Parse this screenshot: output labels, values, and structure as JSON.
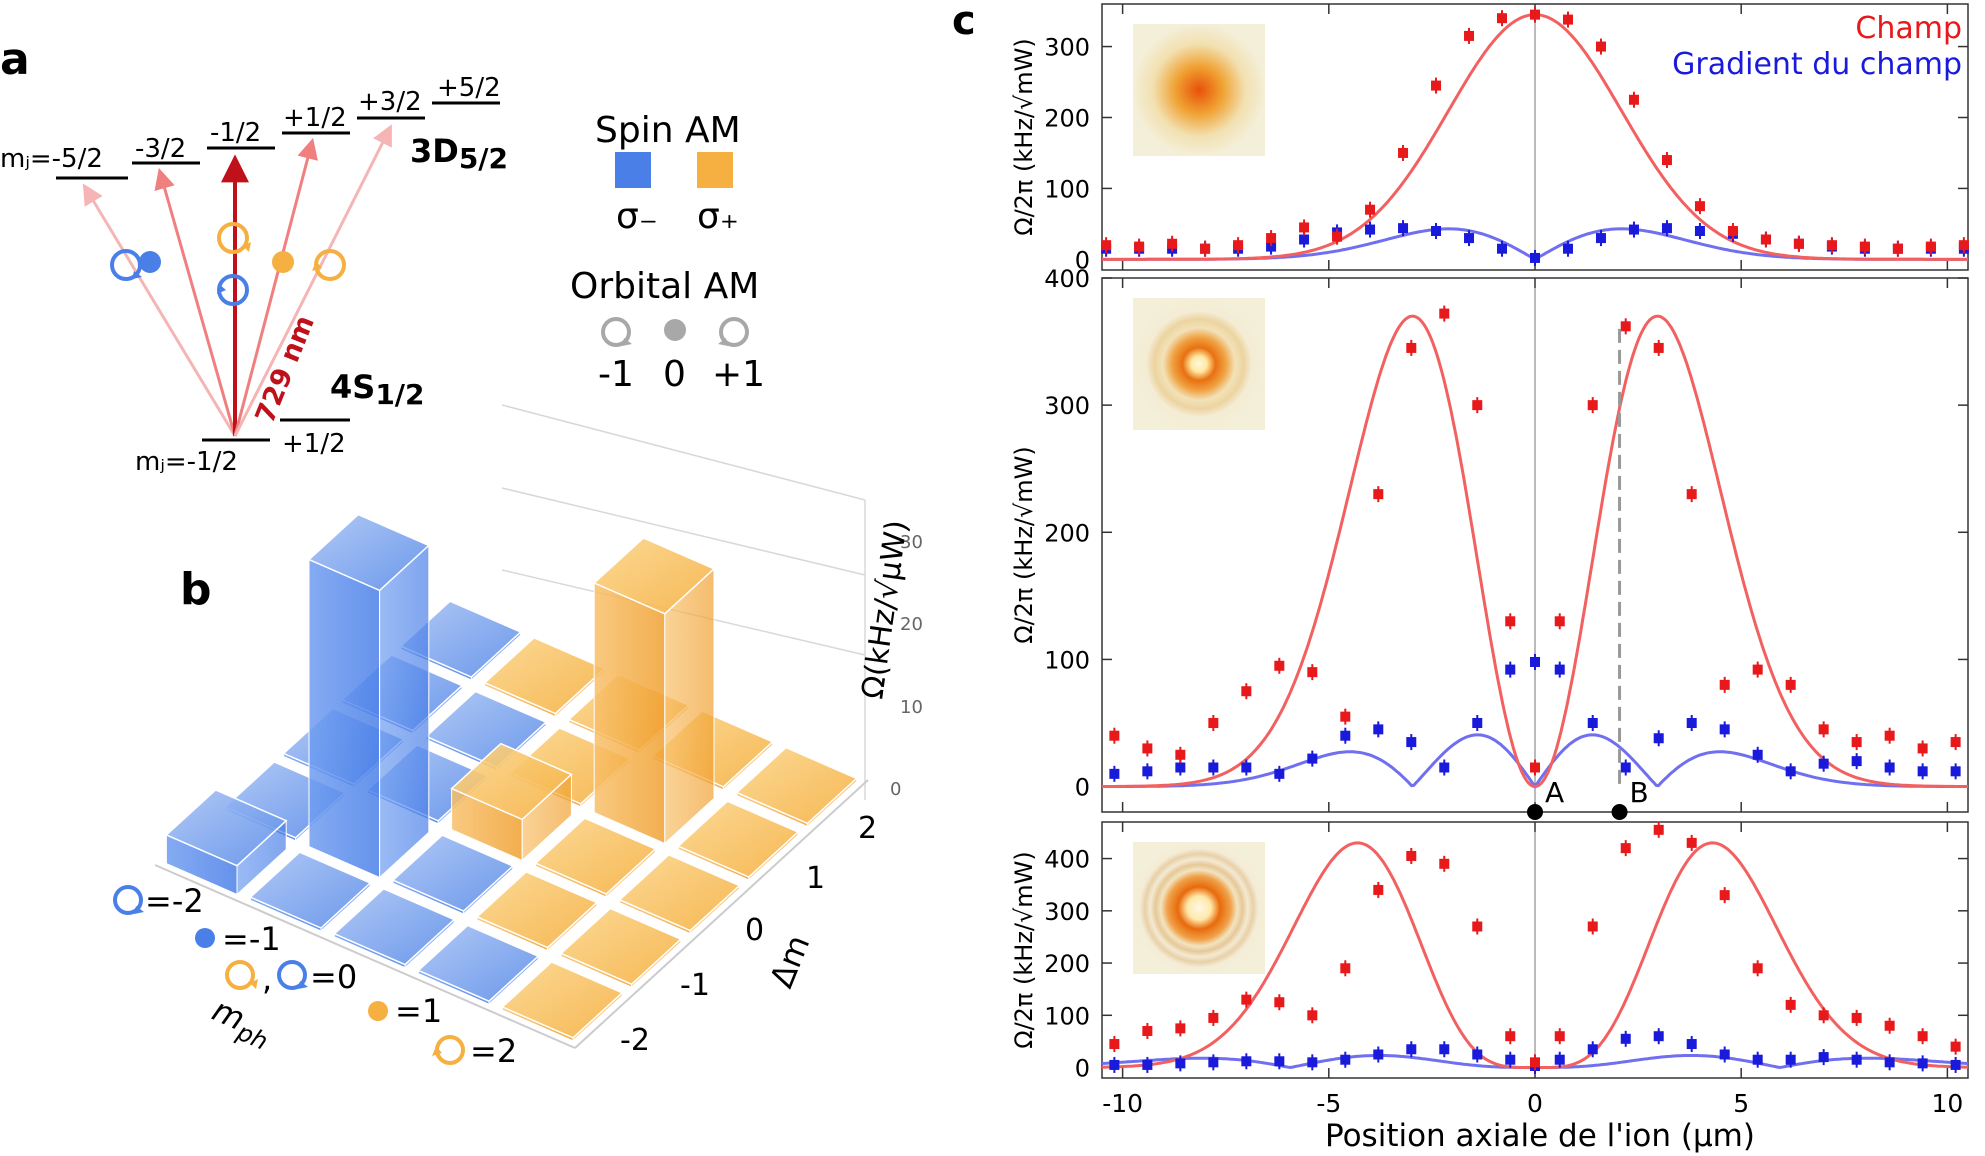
{
  "panel_labels": {
    "a": "a",
    "b": "b",
    "c": "c"
  },
  "colors": {
    "sigma_minus": "#4a7fe8",
    "sigma_plus": "#f5b041",
    "field_red": "#e8191a",
    "fit_red": "#f26060",
    "gradient_blue": "#1a1adb",
    "fit_blue": "#6f6ff0",
    "laser_dark": "#c0101a",
    "grey_icon": "#a8a8a8"
  },
  "panel_a": {
    "d_levels": [
      "mⱼ=-5/2",
      "-3/2",
      "-1/2",
      "+1/2",
      "+3/2",
      "+5/2"
    ],
    "d_state": "3D",
    "d_subscript": "5/2",
    "s_state": "4S",
    "s_subscript": "1/2",
    "s_levels": [
      "mⱼ=-1/2",
      "+1/2"
    ],
    "wavelength": "729 nm"
  },
  "legend_a": {
    "spin_title": "Spin AM",
    "sigma_minus": "σ₋",
    "sigma_plus": "σ₊",
    "orbital_title": "Orbital AM",
    "orbital_values": [
      "-1",
      "0",
      "+1"
    ]
  },
  "chart_data": [
    {
      "type": "bar3d",
      "axis_z_label": "Ω(kHz/√μW)",
      "z_ticks": [
        "0",
        "10",
        "20",
        "30"
      ],
      "axis_dm_label": "Δm",
      "dm_ticks": [
        "2",
        "1",
        "0",
        "-1",
        "-2"
      ],
      "axis_mph_label": "m",
      "axis_mph_subscript": "ph",
      "mph_ticks": [
        "=-2",
        "=-1",
        ",",
        "=0",
        "=1",
        "=2"
      ],
      "bars": [
        {
          "m_ph": -2,
          "dm": -2,
          "value": 3.5,
          "pol": "sigma-"
        },
        {
          "m_ph": -1,
          "dm": -1,
          "value": 35,
          "pol": "sigma-"
        },
        {
          "m_ph": 0,
          "dm": 0,
          "value": 5,
          "pol": "sigma+"
        },
        {
          "m_ph": 1,
          "dm": 1,
          "value": 28,
          "pol": "sigma+"
        }
      ]
    },
    {
      "type": "scatter",
      "xlabel": "Position axiale de l'ion (μm)",
      "xlim": [
        -10.5,
        10.5
      ],
      "x_ticks": [
        -10,
        -5,
        0,
        5,
        10
      ],
      "legend": {
        "field": "Champ",
        "gradient": "Gradient du champ"
      },
      "subplots": [
        {
          "ylabel": "Ω/2π (kHz/√mW)",
          "ylim": [
            -15,
            360
          ],
          "y_ticks": [
            0,
            100,
            200,
            300
          ],
          "field_fit": {
            "shape": "gauss",
            "amp": 345,
            "center": 0,
            "sigma": 2.1
          },
          "gradient_fit": {
            "shape": "gauss_deriv",
            "amp": 43,
            "center": 0,
            "sigma": 2.1
          },
          "field_points": {
            "x": [
              -10.4,
              -9.6,
              -8.8,
              -8.0,
              -7.2,
              -6.4,
              -5.6,
              -4.8,
              -4.0,
              -3.2,
              -2.4,
              -1.6,
              -0.8,
              0,
              0.8,
              1.6,
              2.4,
              3.2,
              4.0,
              4.8,
              5.6,
              6.4,
              7.2,
              8.0,
              8.8,
              9.6,
              10.4
            ],
            "y": [
              20,
              18,
              22,
              15,
              20,
              30,
              45,
              32,
              70,
              150,
              245,
              315,
              340,
              345,
              338,
              300,
              225,
              140,
              75,
              40,
              28,
              22,
              20,
              18,
              15,
              18,
              20
            ]
          },
          "gradient_points": {
            "x": [
              -10.4,
              -9.6,
              -8.8,
              -8.0,
              -7.2,
              -6.4,
              -5.6,
              -4.8,
              -4.0,
              -3.2,
              -2.4,
              -1.6,
              -0.8,
              0,
              0.8,
              1.6,
              2.4,
              3.2,
              4.0,
              4.8,
              5.6,
              6.4,
              7.2,
              8.0,
              8.8,
              9.6,
              10.4
            ],
            "y": [
              15,
              15,
              15,
              15,
              15,
              18,
              28,
              38,
              42,
              44,
              40,
              30,
              15,
              2,
              15,
              30,
              42,
              44,
              40,
              36,
              28,
              22,
              18,
              15,
              15,
              15,
              15
            ]
          }
        },
        {
          "ylabel": "Ω/2π (kHz/√mW)",
          "ylim": [
            -20,
            400
          ],
          "y_ticks": [
            0,
            100,
            200,
            300,
            400
          ],
          "field_fit": {
            "shape": "lg1",
            "amp": 370,
            "center": 0,
            "sigma": 2.1
          },
          "gradient_fit": {
            "shape": "lg1_deriv",
            "amp": 98,
            "center": 0,
            "sigma": 2.1
          },
          "field_points": {
            "x": [
              -10.2,
              -9.4,
              -8.6,
              -7.8,
              -7.0,
              -6.2,
              -5.4,
              -4.6,
              -3.8,
              -3.0,
              -2.2,
              -1.4,
              -0.6,
              0,
              0.6,
              1.4,
              2.2,
              3.0,
              3.8,
              4.6,
              5.4,
              6.2,
              7.0,
              7.8,
              8.6,
              9.4,
              10.2
            ],
            "y": [
              40,
              30,
              25,
              50,
              75,
              95,
              90,
              55,
              230,
              345,
              372,
              300,
              130,
              15,
              130,
              300,
              362,
              345,
              230,
              80,
              92,
              80,
              45,
              35,
              40,
              30,
              35
            ]
          },
          "gradient_points": {
            "x": [
              -10.2,
              -9.4,
              -8.6,
              -7.8,
              -7.0,
              -6.2,
              -5.4,
              -4.6,
              -3.8,
              -3.0,
              -2.2,
              -1.4,
              -0.6,
              0,
              0.6,
              1.4,
              2.2,
              3.0,
              3.8,
              4.6,
              5.4,
              6.2,
              7.0,
              7.8,
              8.6,
              9.4,
              10.2
            ],
            "y": [
              10,
              12,
              15,
              15,
              15,
              10,
              22,
              40,
              45,
              35,
              15,
              50,
              92,
              98,
              92,
              50,
              15,
              38,
              50,
              45,
              25,
              12,
              18,
              20,
              15,
              12,
              12
            ]
          },
          "markers": [
            {
              "label": "A",
              "x": 0
            },
            {
              "label": "B",
              "x": 2.05
            }
          ]
        },
        {
          "ylabel": "Ω/2π (kHz/√mW)",
          "ylim": [
            -20,
            470
          ],
          "y_ticks": [
            0,
            100,
            200,
            300,
            400
          ],
          "field_fit": {
            "shape": "lg2",
            "amp": 430,
            "center": 0,
            "sigma": 2.1
          },
          "gradient_fit": {
            "shape": "lg2_deriv",
            "amp": 48,
            "center": 0,
            "sigma": 2.1
          },
          "field_points": {
            "x": [
              -10.2,
              -9.4,
              -8.6,
              -7.8,
              -7.0,
              -6.2,
              -5.4,
              -4.6,
              -3.8,
              -3.0,
              -2.2,
              -1.4,
              -0.6,
              0,
              0.6,
              1.4,
              2.2,
              3.0,
              3.8,
              4.6,
              5.4,
              6.2,
              7.0,
              7.8,
              8.6,
              9.4,
              10.2
            ],
            "y": [
              45,
              70,
              75,
              95,
              130,
              125,
              100,
              190,
              340,
              405,
              390,
              270,
              60,
              10,
              60,
              270,
              420,
              455,
              430,
              330,
              190,
              120,
              100,
              95,
              80,
              60,
              40
            ]
          },
          "gradient_points": {
            "x": [
              -10.2,
              -9.4,
              -8.6,
              -7.8,
              -7.0,
              -6.2,
              -5.4,
              -4.6,
              -3.8,
              -3.0,
              -2.2,
              -1.4,
              -0.6,
              0,
              0.6,
              1.4,
              2.2,
              3.0,
              3.8,
              4.6,
              5.4,
              6.2,
              7.0,
              7.8,
              8.6,
              9.4,
              10.2
            ],
            "y": [
              5,
              5,
              8,
              10,
              12,
              12,
              10,
              15,
              25,
              35,
              35,
              25,
              15,
              3,
              15,
              35,
              55,
              60,
              45,
              25,
              15,
              15,
              20,
              15,
              10,
              8,
              5
            ]
          }
        }
      ]
    }
  ]
}
